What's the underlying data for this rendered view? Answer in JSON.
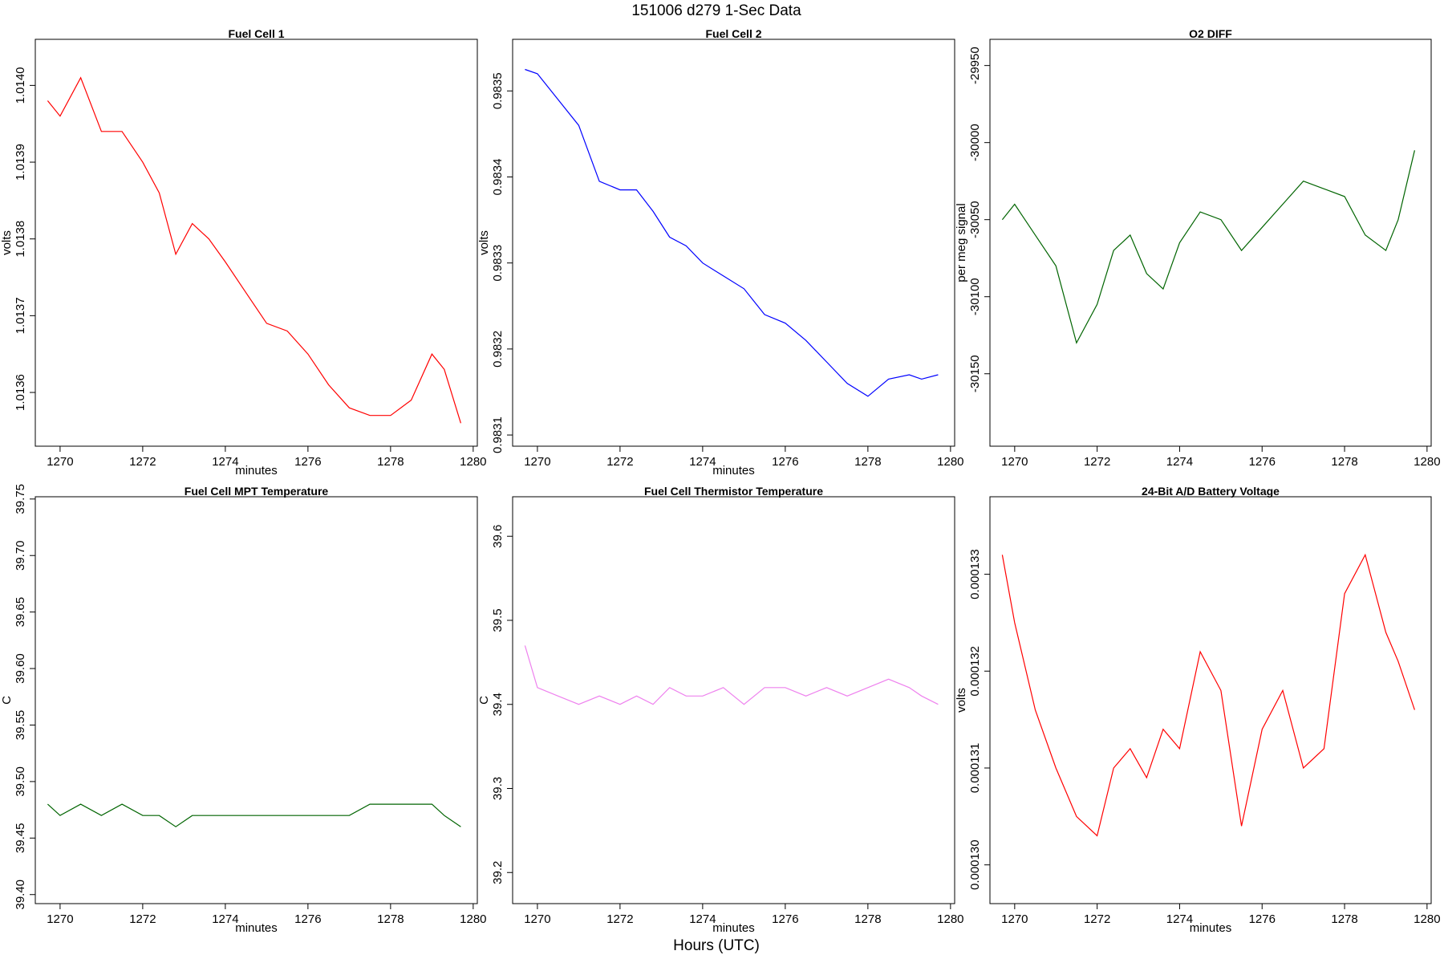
{
  "figure": {
    "title": "151006   d279   1-Sec Data",
    "xlabel": "Hours (UTC)"
  },
  "chart_data": [
    {
      "type": "line",
      "title": "Fuel Cell 1",
      "xlabel": "minutes",
      "ylabel": "volts",
      "color": "#ff0000",
      "xlim": [
        1269.4,
        1280.1
      ],
      "ylim": [
        1.01353,
        1.01406
      ],
      "xticks": [
        "1270",
        "1272",
        "1274",
        "1276",
        "1278",
        "1280"
      ],
      "yticks": [
        "1.0136",
        "1.0137",
        "1.0138",
        "1.0139",
        "1.0140"
      ],
      "series": [
        {
          "x": [
            1269.7,
            1270.0,
            1270.5,
            1271.0,
            1271.5,
            1272.0,
            1272.4,
            1272.8,
            1273.2,
            1273.6,
            1274.0,
            1274.5,
            1275.0,
            1275.5,
            1276.0,
            1276.5,
            1277.0,
            1277.5,
            1278.0,
            1278.5,
            1279.0,
            1279.3,
            1279.7
          ],
          "y": [
            1.01398,
            1.01396,
            1.01401,
            1.01394,
            1.01394,
            1.0139,
            1.01386,
            1.01378,
            1.01382,
            1.0138,
            1.01377,
            1.01373,
            1.01369,
            1.01368,
            1.01365,
            1.01361,
            1.01358,
            1.01357,
            1.01357,
            1.01359,
            1.01365,
            1.01363,
            1.01356
          ]
        }
      ]
    },
    {
      "type": "line",
      "title": "Fuel Cell 2",
      "xlabel": "minutes",
      "ylabel": "volts",
      "color": "#0000ff",
      "xlim": [
        1269.4,
        1280.1
      ],
      "ylim": [
        0.983087,
        0.98356
      ],
      "xticks": [
        "1270",
        "1272",
        "1274",
        "1276",
        "1278",
        "1280"
      ],
      "yticks": [
        "0.9831",
        "0.9832",
        "0.9833",
        "0.9834",
        "0.9835"
      ],
      "series": [
        {
          "x": [
            1269.7,
            1270.0,
            1270.5,
            1271.0,
            1271.5,
            1272.0,
            1272.4,
            1272.8,
            1273.2,
            1273.6,
            1274.0,
            1274.5,
            1275.0,
            1275.5,
            1276.0,
            1276.5,
            1277.0,
            1277.5,
            1278.0,
            1278.5,
            1279.0,
            1279.3,
            1279.7
          ],
          "y": [
            0.983525,
            0.98352,
            0.98349,
            0.98346,
            0.983395,
            0.983385,
            0.983385,
            0.98336,
            0.98333,
            0.98332,
            0.9833,
            0.983285,
            0.98327,
            0.98324,
            0.98323,
            0.98321,
            0.983185,
            0.98316,
            0.983145,
            0.983165,
            0.98317,
            0.983165,
            0.98317
          ]
        }
      ]
    },
    {
      "type": "line",
      "title": "O2 DIFF",
      "xlabel": "",
      "ylabel": "per meg signal",
      "color": "#006400",
      "xlim": [
        1269.4,
        1280.1
      ],
      "ylim": [
        -30197,
        -29933
      ],
      "xticks": [
        "1270",
        "1272",
        "1274",
        "1276",
        "1278",
        "1280"
      ],
      "yticks": [
        "-30150",
        "-30100",
        "-30050",
        "-30000",
        "-29950"
      ],
      "series": [
        {
          "x": [
            1269.7,
            1270.0,
            1270.5,
            1271.0,
            1271.5,
            1272.0,
            1272.4,
            1272.8,
            1273.2,
            1273.6,
            1274.0,
            1274.5,
            1275.0,
            1275.5,
            1276.0,
            1276.5,
            1277.0,
            1277.5,
            1278.0,
            1278.5,
            1279.0,
            1279.3,
            1279.7
          ],
          "y": [
            -30050,
            -30040,
            -30060,
            -30080,
            -30130,
            -30105,
            -30070,
            -30060,
            -30085,
            -30095,
            -30065,
            -30045,
            -30050,
            -30070,
            -30055,
            -30040,
            -30025,
            -30030,
            -30035,
            -30060,
            -30070,
            -30050,
            -30005
          ]
        }
      ]
    },
    {
      "type": "line",
      "title": "Fuel Cell MPT Temperature",
      "xlabel": "minutes",
      "ylabel": "C",
      "color": "#006400",
      "xlim": [
        1269.4,
        1280.1
      ],
      "ylim": [
        39.392,
        39.752
      ],
      "xticks": [
        "1270",
        "1272",
        "1274",
        "1276",
        "1278",
        "1280"
      ],
      "yticks": [
        "39.40",
        "39.45",
        "39.50",
        "39.55",
        "39.60",
        "39.65",
        "39.70",
        "39.75"
      ],
      "series": [
        {
          "x": [
            1269.7,
            1270.0,
            1270.5,
            1271.0,
            1271.5,
            1272.0,
            1272.4,
            1272.8,
            1273.2,
            1273.6,
            1274.0,
            1274.5,
            1275.0,
            1275.5,
            1276.0,
            1276.5,
            1277.0,
            1277.5,
            1278.0,
            1278.5,
            1279.0,
            1279.3,
            1279.7
          ],
          "y": [
            39.48,
            39.47,
            39.48,
            39.47,
            39.48,
            39.47,
            39.47,
            39.46,
            39.47,
            39.47,
            39.47,
            39.47,
            39.47,
            39.47,
            39.47,
            39.47,
            39.47,
            39.48,
            39.48,
            39.48,
            39.48,
            39.47,
            39.46
          ]
        }
      ]
    },
    {
      "type": "line",
      "title": "Fuel Cell Thermistor Temperature",
      "xlabel": "minutes",
      "ylabel": "C",
      "color": "#ee82ee",
      "xlim": [
        1269.4,
        1280.1
      ],
      "ylim": [
        39.163,
        39.647
      ],
      "xticks": [
        "1270",
        "1272",
        "1274",
        "1276",
        "1278",
        "1280"
      ],
      "yticks": [
        "39.2",
        "39.3",
        "39.4",
        "39.5",
        "39.6"
      ],
      "series": [
        {
          "x": [
            1269.7,
            1270.0,
            1270.5,
            1271.0,
            1271.5,
            1272.0,
            1272.4,
            1272.8,
            1273.2,
            1273.6,
            1274.0,
            1274.5,
            1275.0,
            1275.5,
            1276.0,
            1276.5,
            1277.0,
            1277.5,
            1278.0,
            1278.5,
            1279.0,
            1279.3,
            1279.7
          ],
          "y": [
            39.47,
            39.42,
            39.41,
            39.4,
            39.41,
            39.4,
            39.41,
            39.4,
            39.42,
            39.41,
            39.41,
            39.42,
            39.4,
            39.42,
            39.42,
            39.41,
            39.42,
            39.41,
            39.42,
            39.43,
            39.42,
            39.41,
            39.4
          ]
        }
      ]
    },
    {
      "type": "line",
      "title": "24-Bit A/D Battery Voltage",
      "xlabel": "minutes",
      "ylabel": "volts",
      "color": "#ff0000",
      "xlim": [
        1269.4,
        1280.1
      ],
      "ylim": [
        0.0001296,
        0.0001338
      ],
      "xticks": [
        "1270",
        "1272",
        "1274",
        "1276",
        "1278",
        "1280"
      ],
      "yticks": [
        "0.000130",
        "0.000131",
        "0.000132",
        "0.000133"
      ],
      "series": [
        {
          "x": [
            1269.7,
            1270.0,
            1270.5,
            1271.0,
            1271.5,
            1272.0,
            1272.4,
            1272.8,
            1273.2,
            1273.6,
            1274.0,
            1274.5,
            1275.0,
            1275.5,
            1276.0,
            1276.5,
            1277.0,
            1277.5,
            1278.0,
            1278.5,
            1279.0,
            1279.3,
            1279.7
          ],
          "y": [
            0.0001332,
            0.0001325,
            0.0001316,
            0.000131,
            0.0001305,
            0.0001303,
            0.000131,
            0.0001312,
            0.0001309,
            0.0001314,
            0.0001312,
            0.0001322,
            0.0001318,
            0.0001304,
            0.0001314,
            0.0001318,
            0.000131,
            0.0001312,
            0.0001328,
            0.0001332,
            0.0001324,
            0.0001321,
            0.0001316
          ]
        }
      ]
    }
  ]
}
